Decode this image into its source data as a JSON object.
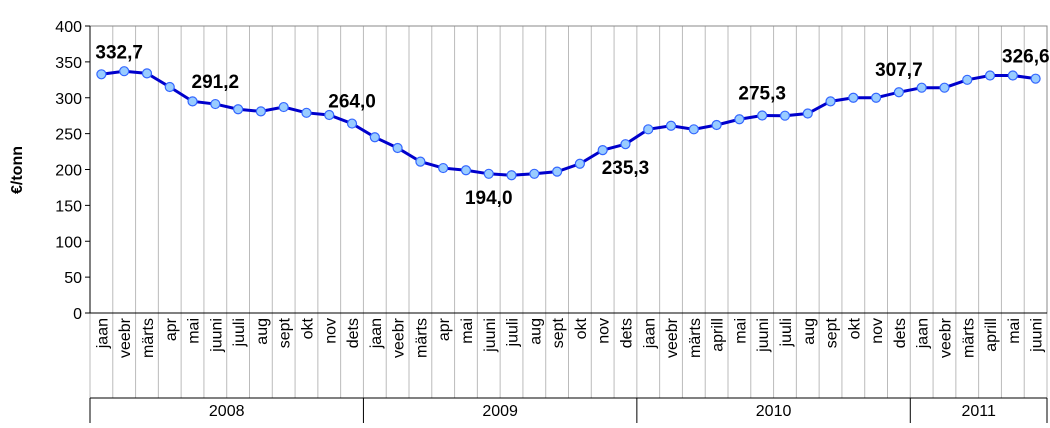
{
  "chart_data": {
    "type": "line",
    "y_label": "€/tonn",
    "categories": [
      "jaan",
      "veebr",
      "märts",
      "apr",
      "mai",
      "juuni",
      "juuli",
      "aug",
      "sept",
      "okt",
      "nov",
      "dets",
      "jaan",
      "veebr",
      "märts",
      "apr",
      "mai",
      "juuni",
      "juuli",
      "aug",
      "sept",
      "okt",
      "nov",
      "dets",
      "jaan",
      "veebr",
      "märts",
      "aprill",
      "mai",
      "juuni",
      "juuli",
      "aug",
      "sept",
      "okt",
      "nov",
      "dets",
      "jaan",
      "veebr",
      "märts",
      "aprill",
      "mai",
      "juuni"
    ],
    "groups": [
      "2008",
      "2009",
      "2010",
      "2011"
    ],
    "series": [
      {
        "name": "€/tonn",
        "color": "#0000cc",
        "marker_color": "#99ccff",
        "values": [
          332.7,
          337,
          334,
          315,
          295,
          291.2,
          284,
          281,
          287,
          279,
          276,
          264.0,
          245,
          230,
          211,
          202,
          199,
          194.0,
          192,
          194,
          197,
          208,
          227,
          235.3,
          256,
          261,
          256,
          262,
          270,
          275.3,
          275,
          278,
          295,
          300,
          300,
          307.7,
          314,
          314,
          325,
          331,
          331,
          326.6
        ],
        "value_labels": [
          "332,7",
          null,
          null,
          null,
          null,
          "291,2",
          null,
          null,
          null,
          null,
          null,
          "264,0",
          null,
          null,
          null,
          null,
          null,
          "194,0",
          null,
          null,
          null,
          null,
          null,
          "235,3",
          null,
          null,
          null,
          null,
          null,
          "275,3",
          null,
          null,
          null,
          null,
          null,
          "307,7",
          null,
          null,
          null,
          null,
          null,
          "326,6"
        ]
      }
    ],
    "ylim": [
      0,
      400
    ],
    "yticks": [
      0,
      50,
      100,
      150,
      200,
      250,
      300,
      350,
      400
    ]
  }
}
